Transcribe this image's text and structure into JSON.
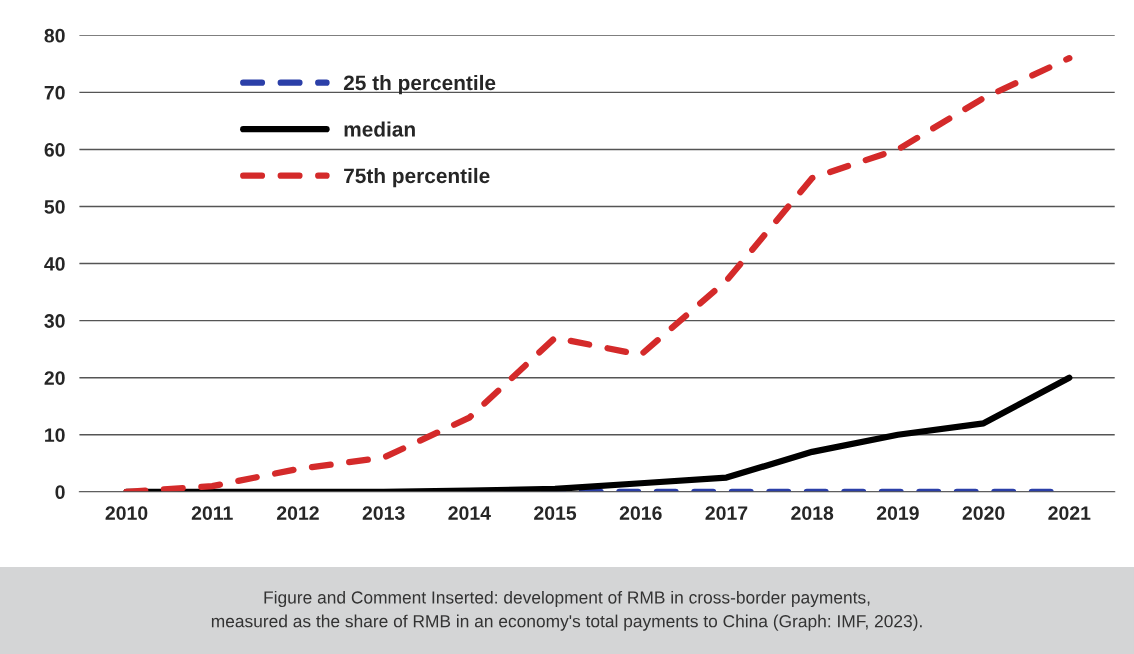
{
  "chart_data": {
    "type": "line",
    "categories": [
      "2010",
      "2011",
      "2012",
      "2013",
      "2014",
      "2015",
      "2016",
      "2017",
      "2018",
      "2019",
      "2020",
      "2021"
    ],
    "series": [
      {
        "name": "25 th percentile",
        "color": "#2b3fa8",
        "line_style": "dashed",
        "values": [
          null,
          null,
          null,
          null,
          0,
          0,
          0,
          0,
          0,
          0,
          0,
          0
        ]
      },
      {
        "name": "median",
        "color": "#000000",
        "line_style": "solid",
        "values": [
          0,
          0,
          0,
          0,
          0.2,
          0.5,
          1.5,
          2.5,
          7,
          10,
          12,
          20
        ]
      },
      {
        "name": "75th percentile",
        "color": "#d42a2a",
        "line_style": "dashed",
        "values": [
          0,
          1,
          4,
          6,
          13,
          27,
          24,
          37,
          55,
          60,
          69,
          76
        ]
      }
    ],
    "ylim": [
      0,
      80
    ],
    "yticks": [
      0,
      10,
      20,
      30,
      40,
      50,
      60,
      70,
      80
    ],
    "grid": "y",
    "legend": "top left",
    "marker": "none",
    "annotations": [
      "Figure and Comment Inserted: development of RMB in cross-border payments,\nmeasured as the share of RMB in an economy's total payments to China (Graph: IMF, 2023)."
    ]
  }
}
